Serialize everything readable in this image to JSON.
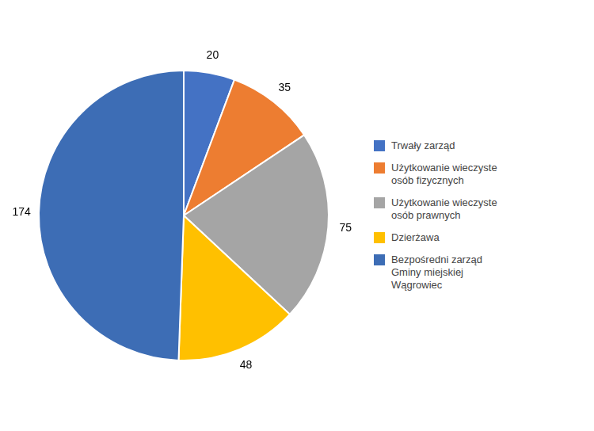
{
  "chart_data": {
    "type": "pie",
    "categories": [
      "Trwały zarząd",
      "Użytkowanie wieczyste\nosób fizycznych",
      "Użytkowanie wieczyste\nosób prawnych",
      "Dzierżawa",
      "Bezpośredni zarząd\nGminy miejskiej\nWągrowiec"
    ],
    "values": [
      20,
      35,
      75,
      48,
      174
    ],
    "colors": [
      "#4472C4",
      "#ED7D31",
      "#A5A5A5",
      "#FFC000",
      "#3D6DB5"
    ],
    "data_labels": true,
    "legend": "right"
  }
}
